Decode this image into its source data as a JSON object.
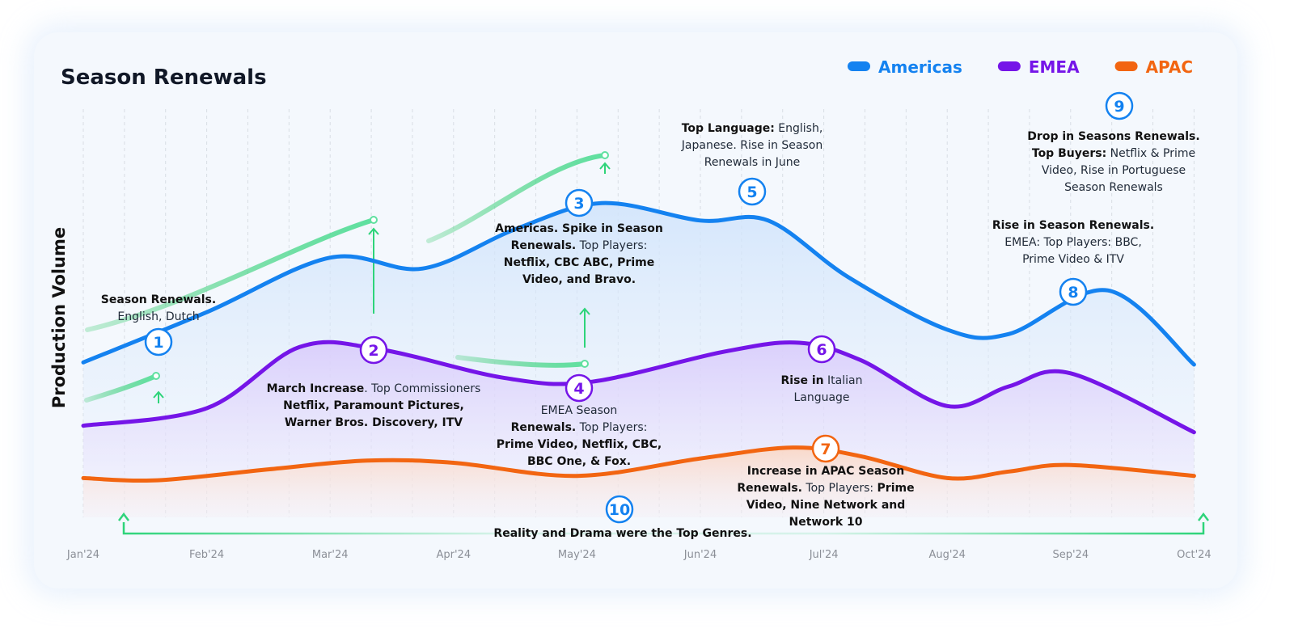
{
  "chart_data": {
    "type": "area",
    "title": "Season Renewals",
    "ylabel": "Production Volume",
    "xlabel": "",
    "x_ticks": [
      "Jan'24",
      "Feb'24",
      "Mar'24",
      "Apr'24",
      "May'24",
      "Jun'24",
      "Jul'24",
      "Aug'24",
      "Sep'24",
      "Oct'24"
    ],
    "xlim": [
      0,
      9
    ],
    "ylim": [
      0,
      100
    ],
    "grid": "vertical dashed",
    "legend_position": "top-right",
    "series": [
      {
        "name": "Americas",
        "color": "#1482f0",
        "points": [
          [
            0,
            35.5
          ],
          [
            1,
            47
          ],
          [
            2,
            59.5
          ],
          [
            2.75,
            57
          ],
          [
            3.5,
            66
          ],
          [
            4.2,
            72
          ],
          [
            5,
            68
          ],
          [
            5.55,
            68
          ],
          [
            6.2,
            55
          ],
          [
            7,
            43
          ],
          [
            7.5,
            42
          ],
          [
            8.3,
            52
          ],
          [
            9,
            35
          ]
        ]
      },
      {
        "name": "EMEA",
        "color": "#7515e8",
        "points": [
          [
            0,
            21
          ],
          [
            1,
            25
          ],
          [
            1.75,
            39
          ],
          [
            2.4,
            38.5
          ],
          [
            3.4,
            32
          ],
          [
            4.1,
            31
          ],
          [
            5.2,
            38
          ],
          [
            5.8,
            40
          ],
          [
            6.3,
            36
          ],
          [
            7,
            25.5
          ],
          [
            7.5,
            30
          ],
          [
            8,
            33
          ],
          [
            9,
            19.5
          ]
        ]
      },
      {
        "name": "APAC",
        "color": "#f26511",
        "points": [
          [
            0,
            9
          ],
          [
            0.6,
            8.5
          ],
          [
            1.5,
            11
          ],
          [
            2.3,
            13
          ],
          [
            3,
            12.5
          ],
          [
            4,
            9.5
          ],
          [
            5,
            13.5
          ],
          [
            5.75,
            16
          ],
          [
            6.3,
            14
          ],
          [
            7,
            9
          ],
          [
            7.5,
            10.5
          ],
          [
            8,
            12
          ],
          [
            9,
            9.5
          ]
        ]
      }
    ],
    "annotations": [
      {
        "number": "1",
        "series": "Americas",
        "lines": [
          [
            {
              "t": "Season Renewals.",
              "b": true
            }
          ],
          [
            {
              "t": "English, Dutch",
              "b": false
            }
          ]
        ]
      },
      {
        "number": "2",
        "series": "EMEA",
        "lines": [
          [
            {
              "t": "March Increase",
              "b": true
            },
            {
              "t": ". Top Commissioners",
              "b": false
            }
          ],
          [
            {
              "t": "Netflix, Paramount Pictures,",
              "b": true
            }
          ],
          [
            {
              "t": "Warner Bros. Discovery, ITV",
              "b": true
            }
          ]
        ]
      },
      {
        "number": "3",
        "series": "Americas",
        "lines": [
          [
            {
              "t": "Americas. Spike in Season",
              "b": true
            }
          ],
          [
            {
              "t": "Renewals.",
              "b": true
            },
            {
              "t": " Top Players:",
              "b": false
            }
          ],
          [
            {
              "t": "Netflix, CBC ABC, Prime",
              "b": true
            }
          ],
          [
            {
              "t": "Video, and Bravo.",
              "b": true
            }
          ]
        ]
      },
      {
        "number": "4",
        "series": "EMEA",
        "lines": [
          [
            {
              "t": "EMEA Season",
              "b": false
            }
          ],
          [
            {
              "t": "Renewals.",
              "b": true
            },
            {
              "t": " Top Players:",
              "b": false
            }
          ],
          [
            {
              "t": "Prime Video, Netflix, CBC,",
              "b": true
            }
          ],
          [
            {
              "t": "BBC One, & Fox.",
              "b": true
            }
          ]
        ]
      },
      {
        "number": "5",
        "series": "Americas",
        "lines": [
          [
            {
              "t": "Top Language:",
              "b": true
            },
            {
              "t": " English,",
              "b": false
            }
          ],
          [
            {
              "t": "Japanese. Rise in Season",
              "b": false
            }
          ],
          [
            {
              "t": "Renewals in June",
              "b": false
            }
          ]
        ]
      },
      {
        "number": "6",
        "series": "EMEA",
        "lines": [
          [
            {
              "t": "Rise in",
              "b": true
            },
            {
              "t": " Italian",
              "b": false
            }
          ],
          [
            {
              "t": "Language",
              "b": false
            }
          ]
        ]
      },
      {
        "number": "7",
        "series": "APAC",
        "lines": [
          [
            {
              "t": "Increase in APAC Season",
              "b": true
            }
          ],
          [
            {
              "t": "Renewals.",
              "b": true
            },
            {
              "t": " Top Players: ",
              "b": false
            },
            {
              "t": "Prime",
              "b": true
            }
          ],
          [
            {
              "t": "Video, Nine Network and",
              "b": true
            }
          ],
          [
            {
              "t": "Network 10",
              "b": true
            }
          ]
        ]
      },
      {
        "number": "8",
        "series": "Americas",
        "lines": [
          [
            {
              "t": "Rise in Season Renewals.",
              "b": true
            }
          ],
          [
            {
              "t": "EMEA:  Top Players: BBC,",
              "b": false
            }
          ],
          [
            {
              "t": "Prime Video & ITV",
              "b": false
            }
          ]
        ]
      },
      {
        "number": "9",
        "series": "Americas",
        "lines": [
          [
            {
              "t": "Drop in Seasons Renewals.",
              "b": true
            }
          ],
          [
            {
              "t": "Top Buyers:",
              "b": true
            },
            {
              "t": " Netflix & Prime",
              "b": false
            }
          ],
          [
            {
              "t": "Video, Rise in Portuguese",
              "b": false
            }
          ],
          [
            {
              "t": "Season Renewals",
              "b": false
            }
          ]
        ]
      },
      {
        "number": "10",
        "series": "Americas",
        "lines": [
          [
            {
              "t": "Reality and Drama were the Top Genres.",
              "b": true
            }
          ]
        ]
      }
    ]
  }
}
